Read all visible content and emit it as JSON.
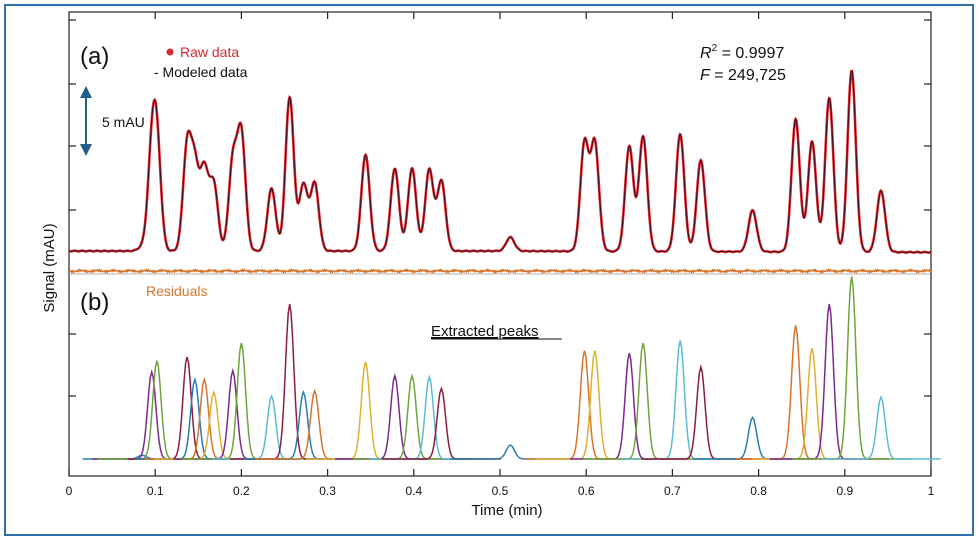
{
  "chart_data": {
    "type": "line",
    "panel_a_label": "(a)",
    "panel_b_label": "(b)",
    "legend": {
      "raw": "Raw data",
      "model": "- Modeled data",
      "placement": "top-left",
      "raw_color": "#d8282e",
      "model_color": "#3b0a1a"
    },
    "stats": {
      "r2_prefix": "R",
      "r2_sup": "2",
      "r2_value": " = 0.9997",
      "f_prefix": "F",
      "f_value": " = 249,725"
    },
    "scale_bar_label": "5 mAU",
    "residuals_label": "Residuals",
    "residuals_color": "#d9732a",
    "extracted_label": "Extracted peaks",
    "ylabel": "Signal (mAU)",
    "xlabel": "Time (min)",
    "xlim": [
      0,
      1
    ],
    "xticks": [
      "0",
      "0.1",
      "0.2",
      "0.3",
      "0.4",
      "0.5",
      "0.6",
      "0.7",
      "0.8",
      "0.9",
      "1"
    ],
    "baseline_a": 0.8,
    "baseline_b": 0,
    "peak_sigma": 0.0048,
    "peaks": [
      {
        "t": 0.085,
        "h": 0.3,
        "color": "#2a7bb4"
      },
      {
        "t": 0.096,
        "h": 6.9,
        "color": "#7b2a8c"
      },
      {
        "t": 0.102,
        "h": 7.8,
        "color": "#6fa33c"
      },
      {
        "t": 0.137,
        "h": 8.1,
        "color": "#8b1e3f"
      },
      {
        "t": 0.146,
        "h": 6.3,
        "color": "#2a7bb4"
      },
      {
        "t": 0.157,
        "h": 6.3,
        "color": "#d9732a"
      },
      {
        "t": 0.168,
        "h": 5.3,
        "color": "#e0b030"
      },
      {
        "t": 0.19,
        "h": 7.0,
        "color": "#7b2a8c"
      },
      {
        "t": 0.2,
        "h": 9.2,
        "color": "#6fa33c"
      },
      {
        "t": 0.235,
        "h": 5.0,
        "color": "#5bbad5"
      },
      {
        "t": 0.256,
        "h": 12.3,
        "color": "#8b1e3f"
      },
      {
        "t": 0.272,
        "h": 5.3,
        "color": "#2a7bb4"
      },
      {
        "t": 0.285,
        "h": 5.4,
        "color": "#d9732a"
      },
      {
        "t": 0.344,
        "h": 7.7,
        "color": "#e0b030"
      },
      {
        "t": 0.378,
        "h": 6.6,
        "color": "#7b2a8c"
      },
      {
        "t": 0.398,
        "h": 6.6,
        "color": "#6fa33c"
      },
      {
        "t": 0.418,
        "h": 6.5,
        "color": "#5bbad5"
      },
      {
        "t": 0.432,
        "h": 5.6,
        "color": "#8b1e3f"
      },
      {
        "t": 0.512,
        "h": 1.1,
        "color": "#2a7bb4"
      },
      {
        "t": 0.598,
        "h": 8.6,
        "color": "#d9732a"
      },
      {
        "t": 0.61,
        "h": 8.6,
        "color": "#e0b030"
      },
      {
        "t": 0.65,
        "h": 8.4,
        "color": "#7b2a8c"
      },
      {
        "t": 0.666,
        "h": 9.2,
        "color": "#6fa33c"
      },
      {
        "t": 0.709,
        "h": 9.4,
        "color": "#5bbad5"
      },
      {
        "t": 0.733,
        "h": 7.3,
        "color": "#8b1e3f"
      },
      {
        "t": 0.793,
        "h": 3.3,
        "color": "#2a7bb4"
      },
      {
        "t": 0.843,
        "h": 10.6,
        "color": "#d9732a"
      },
      {
        "t": 0.862,
        "h": 8.8,
        "color": "#e0b030"
      },
      {
        "t": 0.882,
        "h": 12.3,
        "color": "#7b2a8c"
      },
      {
        "t": 0.908,
        "h": 14.5,
        "color": "#6fa33c"
      },
      {
        "t": 0.942,
        "h": 4.9,
        "color": "#5bbad5"
      }
    ]
  }
}
